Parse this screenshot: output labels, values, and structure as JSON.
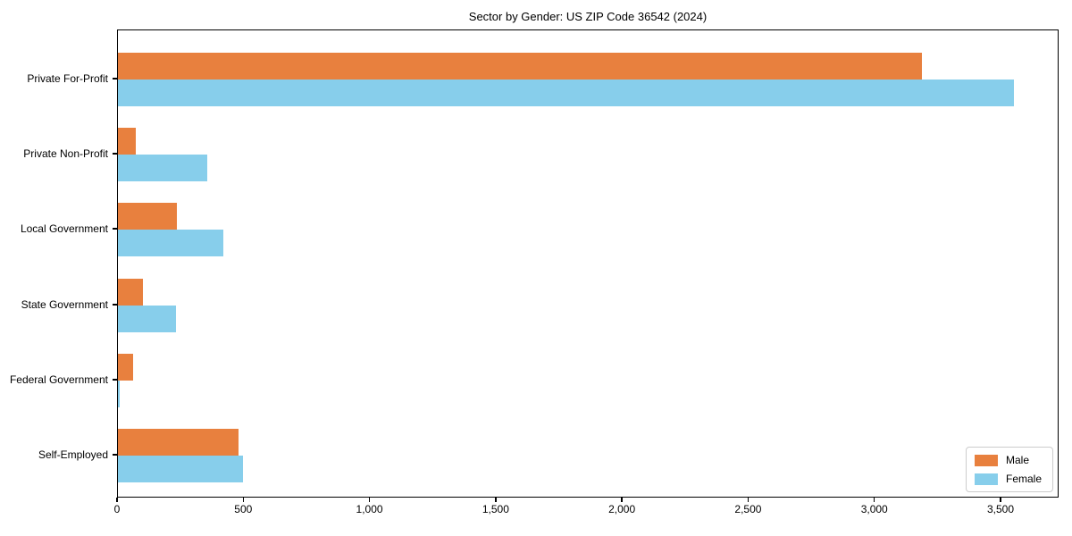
{
  "chart_data": {
    "type": "bar",
    "orientation": "horizontal",
    "title": "Sector by Gender: US ZIP Code 36542 (2024)",
    "categories": [
      "Private For-Profit",
      "Private Non-Profit",
      "Local Government",
      "State Government",
      "Federal Government",
      "Self-Employed"
    ],
    "series": [
      {
        "name": "Male",
        "color": "#e8803e",
        "values": [
          3190,
          70,
          235,
          100,
          60,
          480
        ]
      },
      {
        "name": "Female",
        "color": "#87ceeb",
        "values": [
          3555,
          355,
          420,
          230,
          8,
          495
        ]
      }
    ],
    "xlabel": "",
    "ylabel": "",
    "xlim": [
      0,
      3730
    ],
    "xticks": [
      0,
      500,
      1000,
      1500,
      2000,
      2500,
      3000,
      3500
    ],
    "xtick_labels": [
      "0",
      "500",
      "1,000",
      "1,500",
      "2,000",
      "2,500",
      "3,000",
      "3,500"
    ],
    "grid": false,
    "background": "#ffffff",
    "legend": {
      "position": "lower right",
      "entries": [
        "Male",
        "Female"
      ]
    }
  }
}
